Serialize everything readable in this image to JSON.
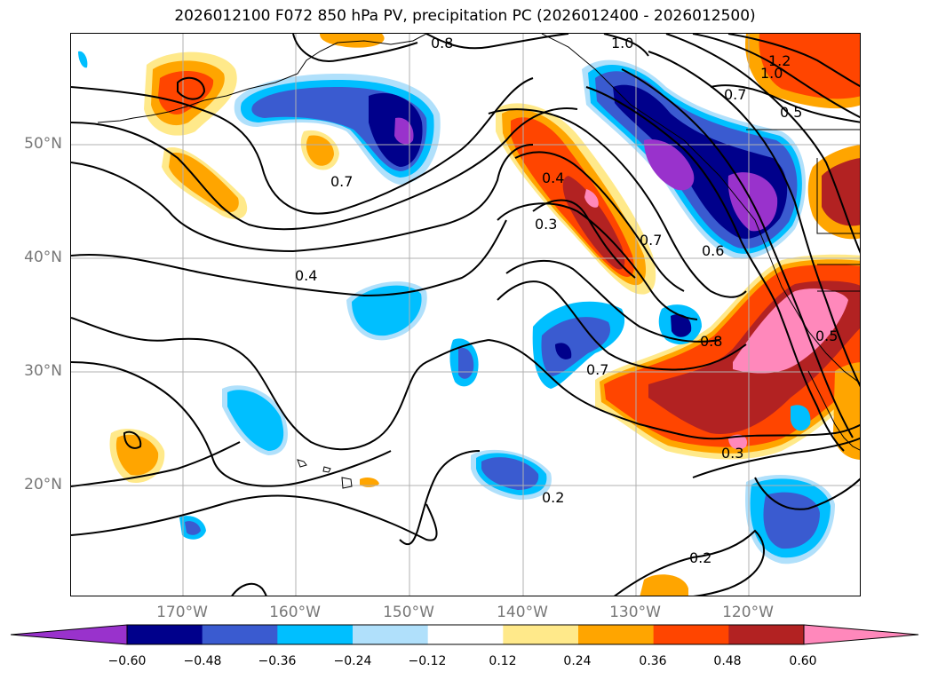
{
  "title": "2026012100 F072 850 hPa PV, precipitation PC (2026012400 - 2026012500)",
  "lat_labels": [
    "50°N",
    "40°N",
    "30°N",
    "20°N"
  ],
  "lon_labels": [
    "170°W",
    "160°W",
    "150°W",
    "140°W",
    "130°W",
    "120°W"
  ],
  "colorbar": {
    "ticks": [
      "−0.60",
      "−0.48",
      "−0.36",
      "−0.24",
      "−0.12",
      "0.12",
      "0.24",
      "0.36",
      "0.48",
      "0.60"
    ],
    "colors": [
      "#9932cc",
      "#00008b",
      "#3a5bd0",
      "#00bfff",
      "#b0e0fb",
      "#ffffff",
      "#ffe98a",
      "#ffa500",
      "#ff4500",
      "#b22222",
      "#ff88bb"
    ]
  },
  "contour_labels": [
    "0.8",
    "1.0",
    "1.2",
    "1.0",
    "0.7",
    "0.5",
    "0.7",
    "0.4",
    "0.3",
    "0.7",
    "0.6",
    "0.4",
    "0.8",
    "0.7",
    "0.3",
    "0.2",
    "0.2",
    "0.5"
  ],
  "colors": {
    "gridline": "#b0b0b0",
    "contour": "#000000",
    "coast": "#000000",
    "tick_text": "#777777"
  }
}
